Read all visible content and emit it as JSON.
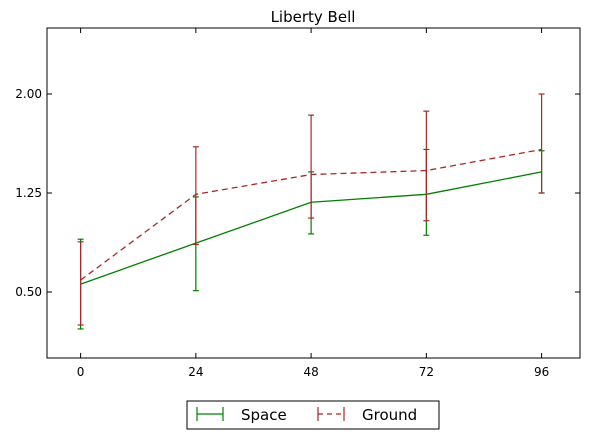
{
  "chart_data": {
    "type": "line",
    "title": "Liberty Bell",
    "xlabel": "",
    "ylabel": "",
    "x": [
      0,
      24,
      48,
      72,
      96
    ],
    "x_tick_labels": [
      "0",
      "24",
      "48",
      "72",
      "96"
    ],
    "xlim": [
      -7,
      104
    ],
    "ylim": [
      0.0,
      2.5
    ],
    "y_ticks": [
      0.5,
      1.25,
      2.0
    ],
    "y_tick_labels": [
      "0.50",
      "1.25",
      "2.00"
    ],
    "grid": false,
    "legend": "bottom-center-outside",
    "series": [
      {
        "name": "Space",
        "color": "#008000",
        "line_style": "solid",
        "values": [
          0.56,
          0.87,
          1.18,
          1.24,
          1.41
        ],
        "error_low": [
          0.22,
          0.51,
          0.94,
          0.93,
          1.25
        ],
        "error_high": [
          0.9,
          1.22,
          1.41,
          1.58,
          1.57
        ]
      },
      {
        "name": "Ground",
        "color": "#a52a2a",
        "line_style": "dashed",
        "values": [
          0.59,
          1.24,
          1.39,
          1.42,
          1.58
        ],
        "error_low": [
          0.25,
          0.86,
          1.06,
          1.04,
          1.25
        ],
        "error_high": [
          0.88,
          1.6,
          1.84,
          1.87,
          2.0
        ]
      }
    ]
  }
}
